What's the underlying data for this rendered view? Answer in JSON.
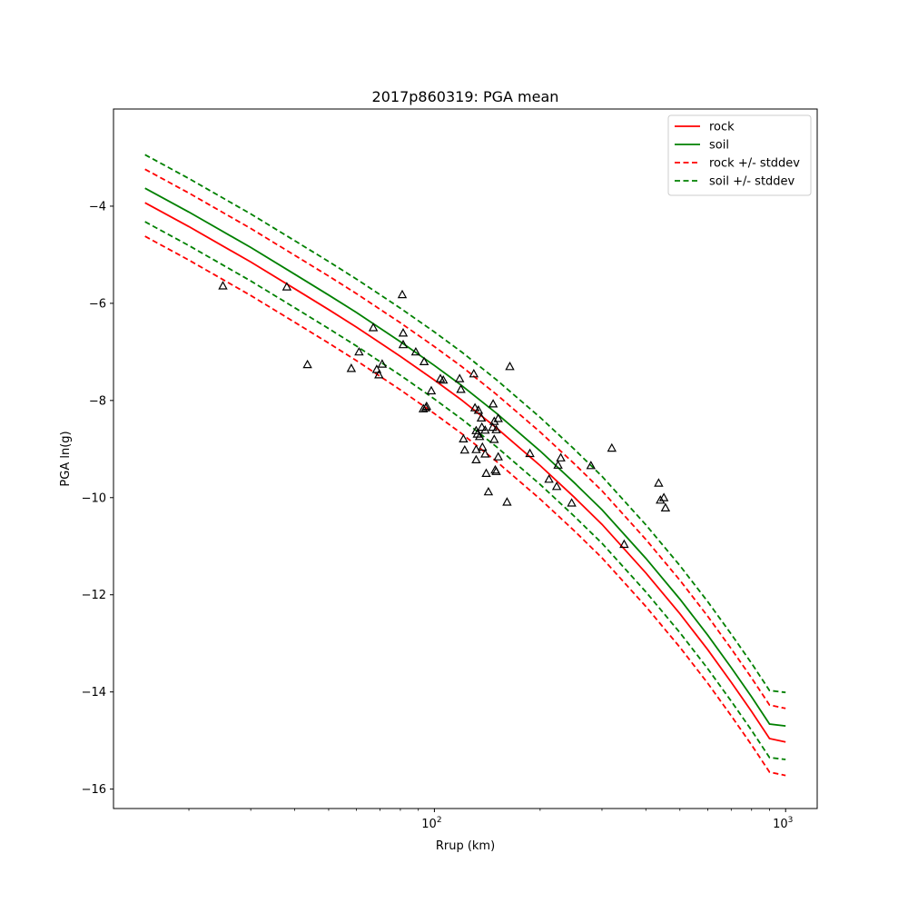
{
  "chart_data": {
    "type": "line",
    "title": "2017p860319: PGA mean",
    "xlabel": "Rrup (km)",
    "ylabel": "PGA ln(g)",
    "xscale": "log",
    "xlim": [
      12.2,
      1230
    ],
    "ylim": [
      -16.4,
      -2.0
    ],
    "x_ticks": [
      {
        "value": 100,
        "base": "10",
        "exp": "2"
      },
      {
        "value": 1000,
        "base": "10",
        "exp": "3"
      }
    ],
    "y_ticks": [
      {
        "value": -4,
        "label": "−4"
      },
      {
        "value": -6,
        "label": "−6"
      },
      {
        "value": -8,
        "label": "−8"
      },
      {
        "value": -10,
        "label": "−10"
      },
      {
        "value": -12,
        "label": "−12"
      },
      {
        "value": -14,
        "label": "−14"
      },
      {
        "value": -16,
        "label": "−16"
      }
    ],
    "grid": false,
    "legend_position": "top-right",
    "x": [
      15,
      20,
      30,
      40,
      50,
      60,
      80,
      100,
      120,
      150,
      200,
      250,
      300,
      400,
      500,
      600,
      700,
      800,
      900,
      1000
    ],
    "series": [
      {
        "name": "rock",
        "color": "#ff0000",
        "style": "solid",
        "y": [
          -3.93,
          -4.42,
          -5.15,
          -5.7,
          -6.13,
          -6.49,
          -7.09,
          -7.58,
          -8.0,
          -8.56,
          -9.34,
          -9.99,
          -10.55,
          -11.55,
          -12.39,
          -13.13,
          -13.8,
          -14.4,
          -14.96,
          -15.03
        ]
      },
      {
        "name": "soil",
        "color": "#008000",
        "style": "solid",
        "y": [
          -3.63,
          -4.12,
          -4.85,
          -5.4,
          -5.83,
          -6.19,
          -6.79,
          -7.28,
          -7.7,
          -8.26,
          -9.04,
          -9.69,
          -10.25,
          -11.25,
          -12.09,
          -12.83,
          -13.5,
          -14.1,
          -14.66,
          -14.7
        ]
      },
      {
        "name": "rock +/- stddev",
        "color": "#ff0000",
        "style": "dashed",
        "offset": 0.69
      },
      {
        "name": "soil +/- stddev",
        "color": "#008000",
        "style": "dashed",
        "offset": 0.69
      }
    ],
    "observations": {
      "marker": "triangle",
      "color": "#000000",
      "points": [
        [
          25.0,
          -5.64
        ],
        [
          38.0,
          -5.66
        ],
        [
          43.5,
          -7.26
        ],
        [
          58.0,
          -7.34
        ],
        [
          61.0,
          -7.0
        ],
        [
          67.0,
          -6.5
        ],
        [
          68.5,
          -7.36
        ],
        [
          69.5,
          -7.47
        ],
        [
          71.0,
          -7.25
        ],
        [
          81.0,
          -5.82
        ],
        [
          81.5,
          -6.61
        ],
        [
          81.5,
          -6.85
        ],
        [
          88.5,
          -7.0
        ],
        [
          93.5,
          -7.2
        ],
        [
          93.0,
          -8.17
        ],
        [
          94.5,
          -8.15
        ],
        [
          95.0,
          -8.12
        ],
        [
          98.0,
          -7.8
        ],
        [
          104.0,
          -7.55
        ],
        [
          106.0,
          -7.58
        ],
        [
          118.0,
          -7.55
        ],
        [
          119.0,
          -7.77
        ],
        [
          121.0,
          -8.79
        ],
        [
          122.0,
          -9.02
        ],
        [
          129.5,
          -7.45
        ],
        [
          130.5,
          -8.15
        ],
        [
          131.5,
          -8.62
        ],
        [
          132.5,
          -8.69
        ],
        [
          131.5,
          -9.01
        ],
        [
          131.5,
          -9.22
        ],
        [
          133.5,
          -8.2
        ],
        [
          134.5,
          -8.74
        ],
        [
          136.0,
          -8.36
        ],
        [
          136.5,
          -8.55
        ],
        [
          137.0,
          -8.96
        ],
        [
          139.5,
          -8.61
        ],
        [
          139.5,
          -9.1
        ],
        [
          140.5,
          -9.5
        ],
        [
          142.5,
          -9.88
        ],
        [
          146.5,
          -8.55
        ],
        [
          147.0,
          -8.07
        ],
        [
          148.0,
          -8.43
        ],
        [
          148.0,
          -8.8
        ],
        [
          149.0,
          -9.43
        ],
        [
          150.0,
          -8.6
        ],
        [
          150.0,
          -9.46
        ],
        [
          152.0,
          -8.37
        ],
        [
          152.0,
          -9.16
        ],
        [
          161.0,
          -10.09
        ],
        [
          164.0,
          -7.3
        ],
        [
          187.0,
          -9.09
        ],
        [
          212.0,
          -9.62
        ],
        [
          223.0,
          -9.77
        ],
        [
          225.0,
          -9.33
        ],
        [
          229.0,
          -9.18
        ],
        [
          246.0,
          -10.11
        ],
        [
          279.0,
          -9.34
        ],
        [
          320.0,
          -8.98
        ],
        [
          347.0,
          -10.96
        ],
        [
          435.0,
          -9.7
        ],
        [
          440.0,
          -10.05
        ],
        [
          450.0,
          -10.0
        ],
        [
          455.0,
          -10.21
        ]
      ]
    },
    "legend": [
      {
        "label": "rock",
        "color": "#ff0000",
        "style": "solid"
      },
      {
        "label": "soil",
        "color": "#008000",
        "style": "solid"
      },
      {
        "label": "rock +/- stddev",
        "color": "#ff0000",
        "style": "dashed"
      },
      {
        "label": "soil +/- stddev",
        "color": "#008000",
        "style": "dashed"
      }
    ]
  }
}
